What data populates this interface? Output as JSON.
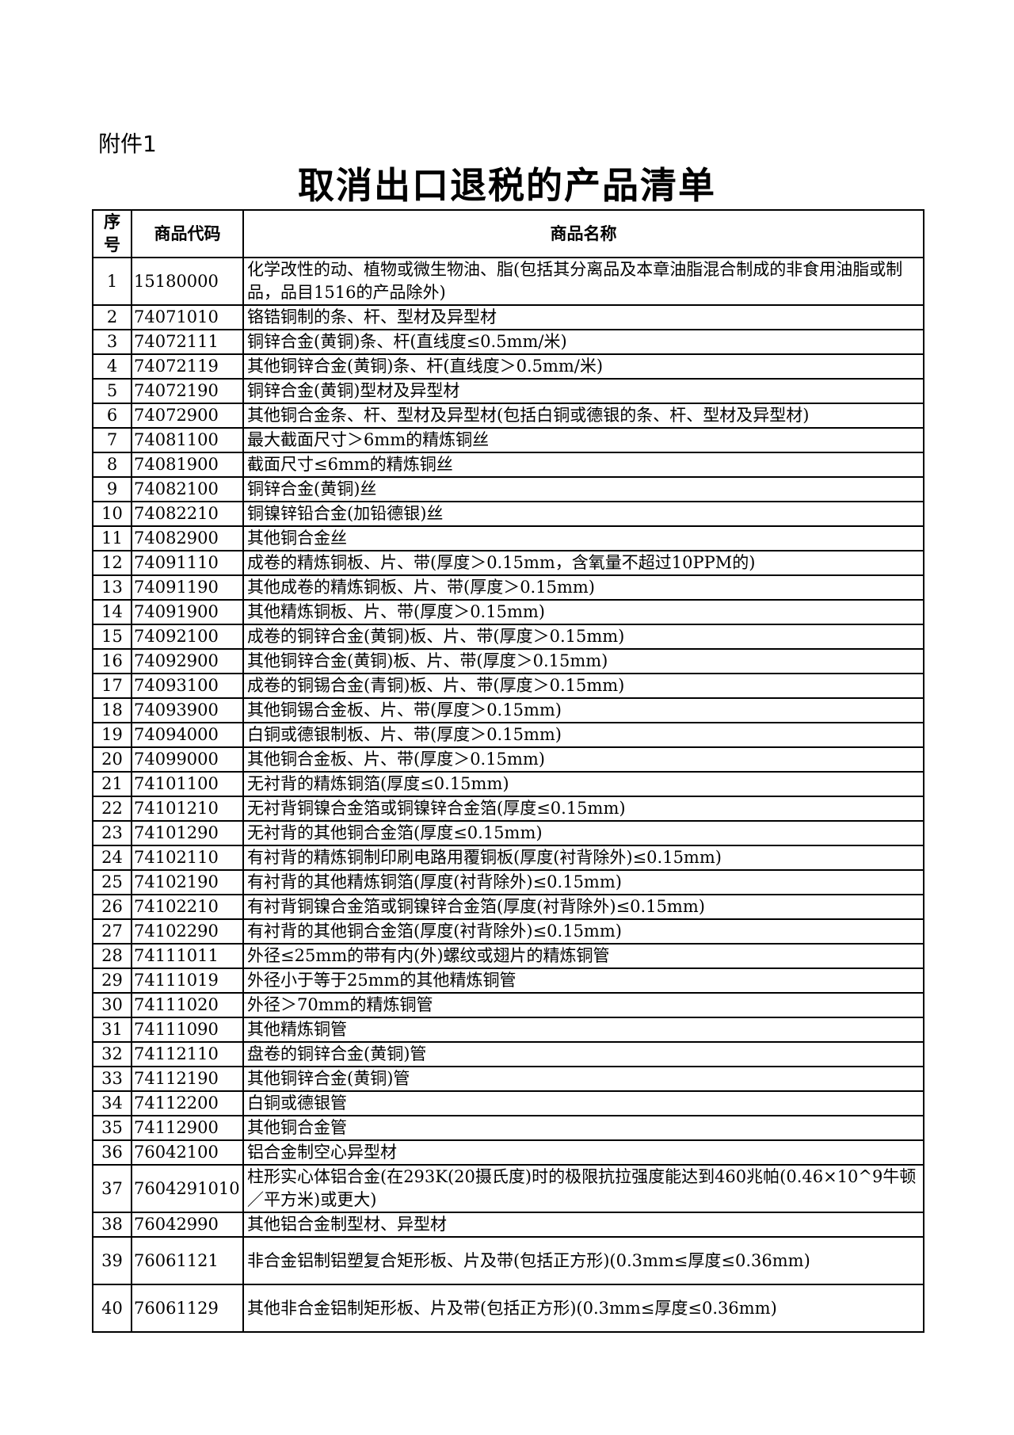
{
  "header": {
    "label": "附件1",
    "title": "取消出口退税的产品清单"
  },
  "table": {
    "columns": [
      "序号",
      "商品代码",
      "商品名称"
    ],
    "rows": [
      [
        "1",
        "15180000",
        "化学改性的动、植物或微生物油、脂(包括其分离品及本章油脂混合制成的非食用油脂或制品，品目1516的产品除外)"
      ],
      [
        "2",
        "74071010",
        "铬锆铜制的条、杆、型材及异型材"
      ],
      [
        "3",
        "74072111",
        "铜锌合金(黄铜)条、杆(直线度≤0.5mm/米)"
      ],
      [
        "4",
        "74072119",
        "其他铜锌合金(黄铜)条、杆(直线度＞0.5mm/米)"
      ],
      [
        "5",
        "74072190",
        "铜锌合金(黄铜)型材及异型材"
      ],
      [
        "6",
        "74072900",
        "其他铜合金条、杆、型材及异型材(包括白铜或德银的条、杆、型材及异型材)"
      ],
      [
        "7",
        "74081100",
        "最大截面尺寸＞6mm的精炼铜丝"
      ],
      [
        "8",
        "74081900",
        "截面尺寸≤6mm的精炼铜丝"
      ],
      [
        "9",
        "74082100",
        "铜锌合金(黄铜)丝"
      ],
      [
        "10",
        "74082210",
        "铜镍锌铅合金(加铅德银)丝"
      ],
      [
        "11",
        "74082900",
        "其他铜合金丝"
      ],
      [
        "12",
        "74091110",
        "成卷的精炼铜板、片、带(厚度＞0.15mm，含氧量不超过10PPM的)"
      ],
      [
        "13",
        "74091190",
        "其他成卷的精炼铜板、片、带(厚度＞0.15mm)"
      ],
      [
        "14",
        "74091900",
        "其他精炼铜板、片、带(厚度＞0.15mm)"
      ],
      [
        "15",
        "74092100",
        "成卷的铜锌合金(黄铜)板、片、带(厚度＞0.15mm)"
      ],
      [
        "16",
        "74092900",
        "其他铜锌合金(黄铜)板、片、带(厚度＞0.15mm)"
      ],
      [
        "17",
        "74093100",
        "成卷的铜锡合金(青铜)板、片、带(厚度＞0.15mm)"
      ],
      [
        "18",
        "74093900",
        "其他铜锡合金板、片、带(厚度＞0.15mm)"
      ],
      [
        "19",
        "74094000",
        "白铜或德银制板、片、带(厚度＞0.15mm)"
      ],
      [
        "20",
        "74099000",
        "其他铜合金板、片、带(厚度＞0.15mm)"
      ],
      [
        "21",
        "74101100",
        "无衬背的精炼铜箔(厚度≤0.15mm)"
      ],
      [
        "22",
        "74101210",
        "无衬背铜镍合金箔或铜镍锌合金箔(厚度≤0.15mm)"
      ],
      [
        "23",
        "74101290",
        "无衬背的其他铜合金箔(厚度≤0.15mm)"
      ],
      [
        "24",
        "74102110",
        "有衬背的精炼铜制印刷电路用覆铜板(厚度(衬背除外)≤0.15mm)"
      ],
      [
        "25",
        "74102190",
        "有衬背的其他精炼铜箔(厚度(衬背除外)≤0.15mm)"
      ],
      [
        "26",
        "74102210",
        "有衬背铜镍合金箔或铜镍锌合金箔(厚度(衬背除外)≤0.15mm)"
      ],
      [
        "27",
        "74102290",
        "有衬背的其他铜合金箔(厚度(衬背除外)≤0.15mm)"
      ],
      [
        "28",
        "74111011",
        "外径≤25mm的带有内(外)螺纹或翅片的精炼铜管"
      ],
      [
        "29",
        "74111019",
        "外径小于等于25mm的其他精炼铜管"
      ],
      [
        "30",
        "74111020",
        "外径＞70mm的精炼铜管"
      ],
      [
        "31",
        "74111090",
        "其他精炼铜管"
      ],
      [
        "32",
        "74112110",
        "盘卷的铜锌合金(黄铜)管"
      ],
      [
        "33",
        "74112190",
        "其他铜锌合金(黄铜)管"
      ],
      [
        "34",
        "74112200",
        "白铜或德银管"
      ],
      [
        "35",
        "74112900",
        "其他铜合金管"
      ],
      [
        "36",
        "76042100",
        "铝合金制空心异型材"
      ],
      [
        "37",
        "7604291010",
        "柱形实心体铝合金(在293K(20摄氏度)时的极限抗拉强度能达到460兆帕(0.46×10^9牛顿／平方米)或更大)"
      ],
      [
        "38",
        "76042990",
        "其他铝合金制型材、异型材"
      ],
      [
        "39",
        "76061121",
        "非合金铝制铝塑复合矩形板、片及带(包括正方形)(0.3mm≤厚度≤0.36mm)"
      ],
      [
        "40",
        "76061129",
        "其他非合金铝制矩形板、片及带(包括正方形)(0.3mm≤厚度≤0.36mm)"
      ]
    ]
  }
}
